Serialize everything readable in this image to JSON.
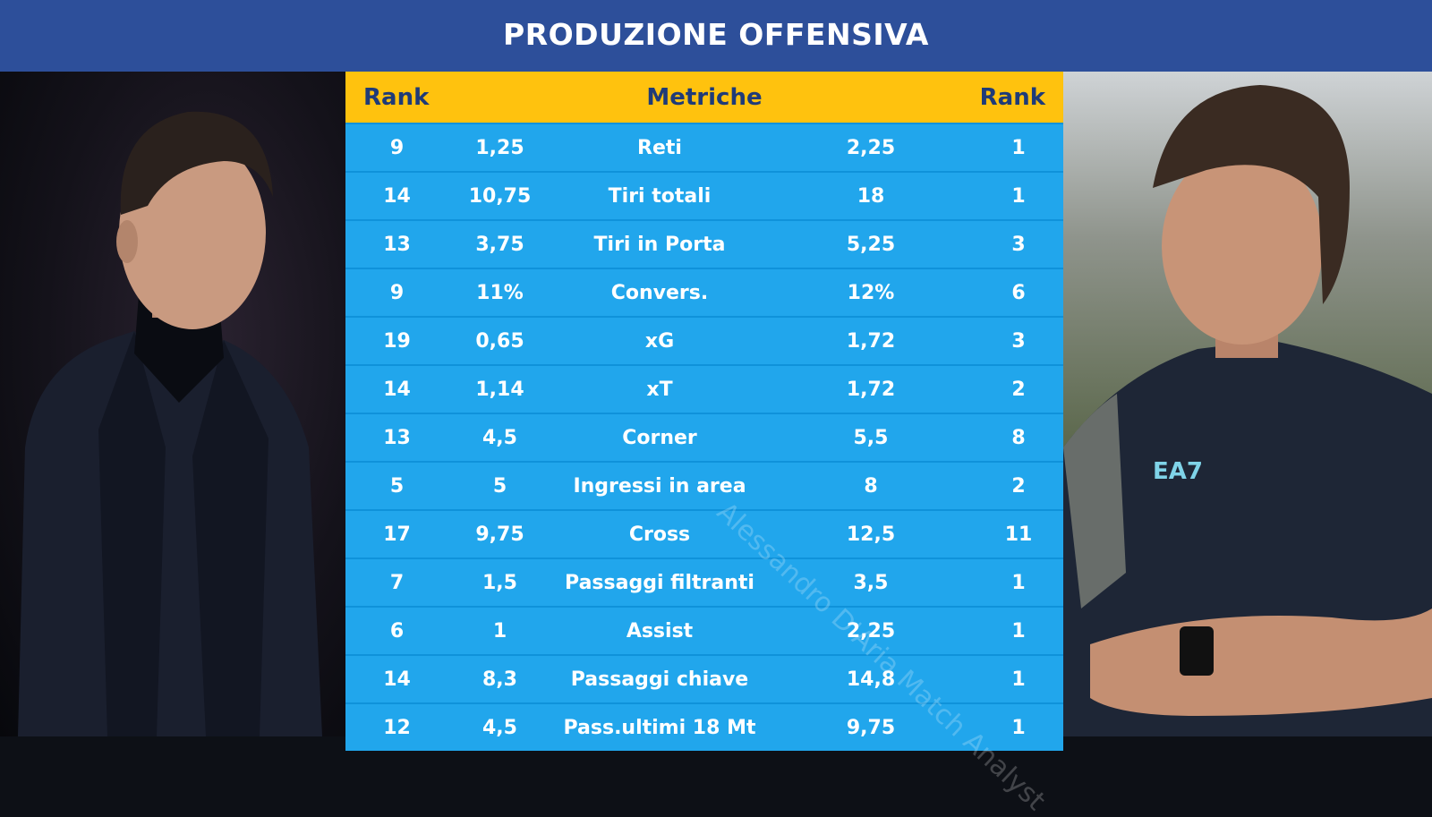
{
  "header": {
    "title": "PRODUZIONE OFFENSIVA"
  },
  "table": {
    "headers": {
      "rank_left": "Rank",
      "metric": "Metriche",
      "rank_right": "Rank"
    },
    "rows": [
      {
        "rank_left": "9",
        "value_left": "1,25",
        "metric": "Reti",
        "value_right": "2,25",
        "rank_right": "1"
      },
      {
        "rank_left": "14",
        "value_left": "10,75",
        "metric": "Tiri totali",
        "value_right": "18",
        "rank_right": "1"
      },
      {
        "rank_left": "13",
        "value_left": "3,75",
        "metric": "Tiri in Porta",
        "value_right": "5,25",
        "rank_right": "3"
      },
      {
        "rank_left": "9",
        "value_left": "11%",
        "metric": "Convers.",
        "value_right": "12%",
        "rank_right": "6"
      },
      {
        "rank_left": "19",
        "value_left": "0,65",
        "metric": "xG",
        "value_right": "1,72",
        "rank_right": "3"
      },
      {
        "rank_left": "14",
        "value_left": "1,14",
        "metric": "xT",
        "value_right": "1,72",
        "rank_right": "2"
      },
      {
        "rank_left": "13",
        "value_left": "4,5",
        "metric": "Corner",
        "value_right": "5,5",
        "rank_right": "8"
      },
      {
        "rank_left": "5",
        "value_left": "5",
        "metric": "Ingressi in area",
        "value_right": "8",
        "rank_right": "2"
      },
      {
        "rank_left": "17",
        "value_left": "9,75",
        "metric": "Cross",
        "value_right": "12,5",
        "rank_right": "11"
      },
      {
        "rank_left": "7",
        "value_left": "1,5",
        "metric": "Passaggi filtranti",
        "value_right": "3,5",
        "rank_right": "1"
      },
      {
        "rank_left": "6",
        "value_left": "1",
        "metric": "Assist",
        "value_right": "2,25",
        "rank_right": "1"
      },
      {
        "rank_left": "14",
        "value_left": "8,3",
        "metric": "Passaggi chiave",
        "value_right": "14,8",
        "rank_right": "1"
      },
      {
        "rank_left": "12",
        "value_left": "4,5",
        "metric": "Pass.ultimi 18 Mt",
        "value_right": "9,75",
        "rank_right": "1"
      }
    ]
  },
  "watermark": "Alessandro D'Aria Match Analyst",
  "photos": {
    "right_shirt_logo": "EA7"
  },
  "colors": {
    "banner": "#2d4f9a",
    "header_row": "#ffc20e",
    "header_text": "#1f3b78",
    "row": "#21a6ec",
    "row_separator": "#0f92da"
  }
}
